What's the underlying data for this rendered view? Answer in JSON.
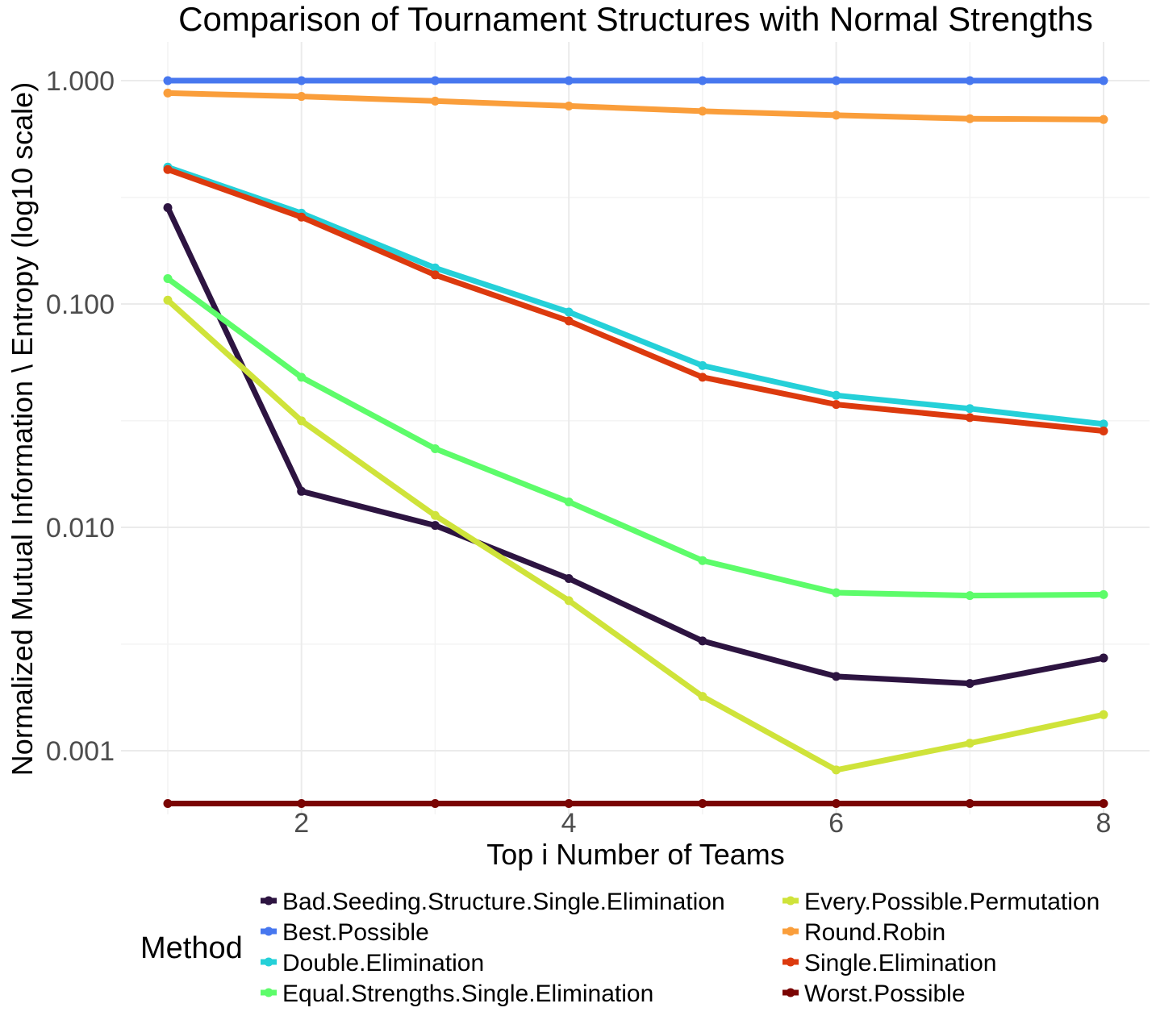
{
  "chart_data": {
    "type": "line",
    "title": "Comparison of Tournament Structures with Normal Strengths",
    "xlabel": "Top i Number of Teams",
    "ylabel": "Normalized Mutual Information \\ Entropy (log10 scale)",
    "y_scale": "log10",
    "xlim": [
      1,
      8
    ],
    "ylim": [
      0.0006,
      1.3
    ],
    "x_ticks": [
      2,
      4,
      6,
      8
    ],
    "x_tick_labels": [
      "2",
      "4",
      "6",
      "8"
    ],
    "y_ticks": [
      0.001,
      0.01,
      0.1,
      1
    ],
    "y_tick_labels": [
      "0.001",
      "0.010",
      "0.100",
      "1.000"
    ],
    "grid": true,
    "legend_title": "Method",
    "legend_position": "bottom",
    "x": [
      1,
      2,
      3,
      4,
      5,
      6,
      7,
      8
    ],
    "series": [
      {
        "name": "Bad.Seeding.Structure.Single.Elimination",
        "color": "#2d1441",
        "values": [
          0.27,
          0.0145,
          0.0102,
          0.0059,
          0.0031,
          0.00215,
          0.002,
          0.0026
        ]
      },
      {
        "name": "Best.Possible",
        "color": "#4777ef",
        "values": [
          1.0,
          1.0,
          1.0,
          1.0,
          1.0,
          1.0,
          1.0,
          1.0
        ]
      },
      {
        "name": "Double.Elimination",
        "color": "#25d0d8",
        "values": [
          0.41,
          0.255,
          0.145,
          0.092,
          0.053,
          0.039,
          0.034,
          0.029
        ]
      },
      {
        "name": "Equal.Strengths.Single.Elimination",
        "color": "#5dfc6a",
        "values": [
          0.13,
          0.047,
          0.0225,
          0.013,
          0.0071,
          0.0051,
          0.00495,
          0.005
        ]
      },
      {
        "name": "Every.Possible.Permutation",
        "color": "#cfe33a",
        "values": [
          0.104,
          0.03,
          0.0113,
          0.0047,
          0.00175,
          0.00082,
          0.00108,
          0.00145
        ]
      },
      {
        "name": "Round.Robin",
        "color": "#fa9e3b",
        "values": [
          0.88,
          0.85,
          0.81,
          0.77,
          0.73,
          0.7,
          0.675,
          0.67
        ]
      },
      {
        "name": "Single.Elimination",
        "color": "#dc3a0e",
        "values": [
          0.4,
          0.245,
          0.135,
          0.084,
          0.047,
          0.0355,
          0.031,
          0.027
        ]
      },
      {
        "name": "Worst.Possible",
        "color": "#7a0403",
        "values": [
          0.00058,
          0.00058,
          0.00058,
          0.00058,
          0.00058,
          0.00058,
          0.00058,
          0.00058
        ]
      }
    ]
  }
}
